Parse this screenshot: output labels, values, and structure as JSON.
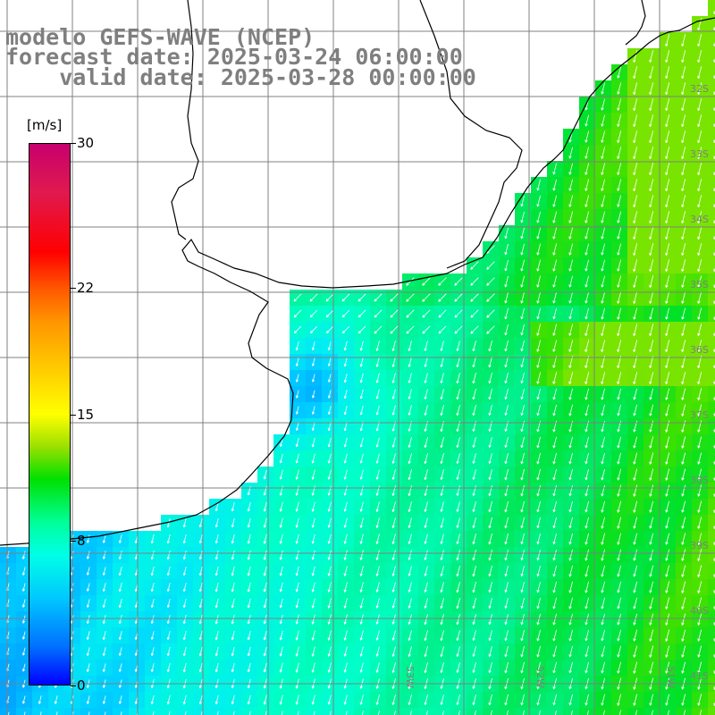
{
  "title": {
    "line1": "modelo GEFS-WAVE (NCEP)",
    "line2": "forecast date: 2025-03-24 06:00:00",
    "line3": "    valid date: 2025-03-28 00:00:00"
  },
  "colorbar": {
    "unit": "[m/s]",
    "ticks": [
      "30",
      "22",
      "15",
      "8",
      "0"
    ],
    "tick_values": [
      30,
      22,
      15,
      8,
      0
    ],
    "range": [
      0,
      30
    ]
  },
  "map": {
    "latitude_labels": [
      "32S",
      "33S",
      "34S",
      "35S",
      "36S",
      "37S",
      "38S",
      "39S",
      "40S",
      "41S"
    ],
    "longitude_labels": [
      "53W",
      "52W",
      "51W"
    ],
    "field": "wind speed with direction arrows",
    "colors": {
      "land": "#ffffff",
      "coast": "#000000",
      "grid": "#808080",
      "arrows": "#ffffff"
    }
  }
}
